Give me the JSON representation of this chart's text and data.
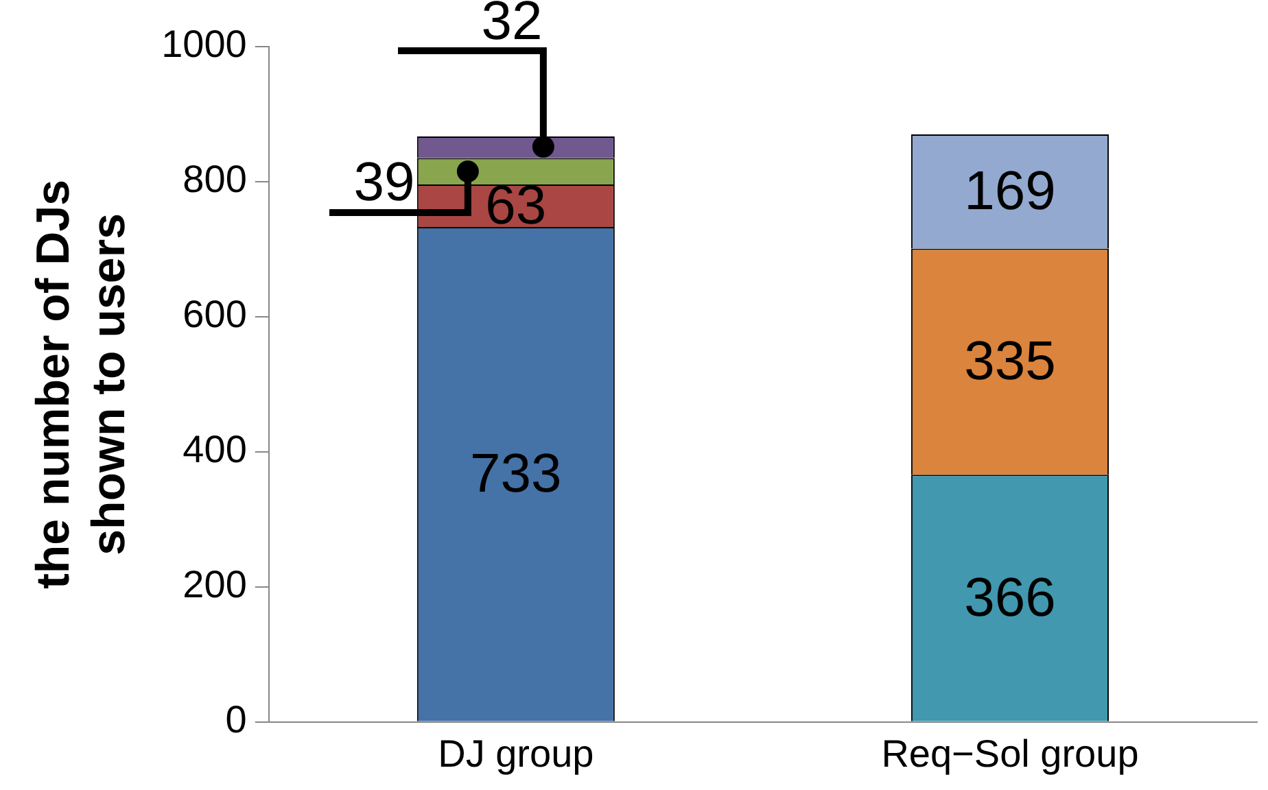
{
  "chart_data": {
    "type": "bar",
    "stacked": true,
    "ylabel": "the number of DJs\nshown to users",
    "categories": [
      "DJ group",
      "Req−Sol group"
    ],
    "series": [
      {
        "color": "#4572a7",
        "values": [
          733,
          null
        ]
      },
      {
        "color": "#aa4643",
        "values": [
          63,
          null
        ]
      },
      {
        "color": "#89a54e",
        "values": [
          39,
          null
        ]
      },
      {
        "color": "#71588f",
        "values": [
          32,
          null
        ]
      },
      {
        "color": "#4198af",
        "values": [
          null,
          366
        ]
      },
      {
        "color": "#db843d",
        "values": [
          null,
          335
        ]
      },
      {
        "color": "#93a9cf",
        "values": [
          null,
          169
        ]
      }
    ],
    "ylim": [
      0,
      1000
    ],
    "yticks": [
      0,
      200,
      400,
      600,
      800,
      1000
    ],
    "data_labels": true,
    "grid": false,
    "legend": false
  }
}
